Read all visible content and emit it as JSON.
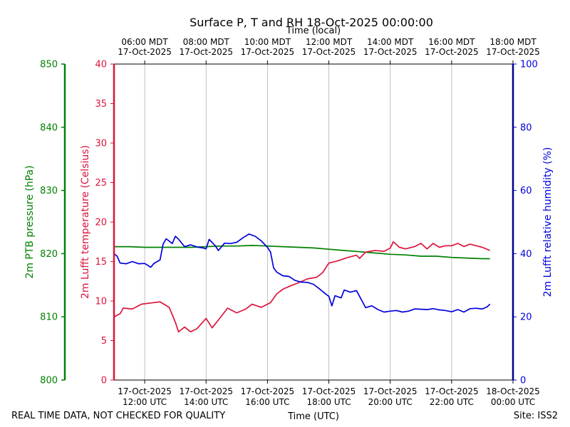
{
  "chart_data": {
    "type": "line",
    "title": "Surface P, T and RH 18-Oct-2025 00:00:00",
    "top_axis_label": "Time (local)",
    "xlabel": "Time (UTC)",
    "footer_left": "REAL TIME DATA, NOT CHECKED FOR QUALITY",
    "footer_right": "Site: ISS2",
    "x_range_hours_utc": [
      11,
      24
    ],
    "x_ticks": [
      {
        "hour": 12,
        "utc_date": "17-Oct-2025",
        "utc_time": "12:00 UTC",
        "local_time": "06:00 MDT",
        "local_date": "17-Oct-2025"
      },
      {
        "hour": 14,
        "utc_date": "17-Oct-2025",
        "utc_time": "14:00 UTC",
        "local_time": "08:00 MDT",
        "local_date": "17-Oct-2025"
      },
      {
        "hour": 16,
        "utc_date": "17-Oct-2025",
        "utc_time": "16:00 UTC",
        "local_time": "10:00 MDT",
        "local_date": "17-Oct-2025"
      },
      {
        "hour": 18,
        "utc_date": "17-Oct-2025",
        "utc_time": "18:00 UTC",
        "local_time": "12:00 MDT",
        "local_date": "17-Oct-2025"
      },
      {
        "hour": 20,
        "utc_date": "17-Oct-2025",
        "utc_time": "20:00 UTC",
        "local_time": "14:00 MDT",
        "local_date": "17-Oct-2025"
      },
      {
        "hour": 22,
        "utc_date": "17-Oct-2025",
        "utc_time": "22:00 UTC",
        "local_time": "16:00 MDT",
        "local_date": "17-Oct-2025"
      },
      {
        "hour": 24,
        "utc_date": "18-Oct-2025",
        "utc_time": "00:00 UTC",
        "local_time": "18:00 MDT",
        "local_date": "17-Oct-2025"
      }
    ],
    "grid_vertical": true,
    "axes": {
      "pressure": {
        "label": "2m PTB pressure (hPa)",
        "range": [
          800,
          850
        ],
        "ticks": [
          800,
          810,
          820,
          830,
          840,
          850
        ],
        "color": "#008000"
      },
      "temperature": {
        "label": "2m Lufft temperature (Celsius)",
        "range": [
          0,
          40
        ],
        "ticks": [
          0,
          5,
          10,
          15,
          20,
          25,
          30,
          35,
          40
        ],
        "color": "#dc143c"
      },
      "humidity": {
        "label": "2m Lufft relative humidity (%)",
        "range": [
          0,
          100
        ],
        "ticks": [
          0,
          20,
          40,
          60,
          80,
          100
        ],
        "color": "#0000dd"
      }
    },
    "series": [
      {
        "name": "2m PTB pressure (hPa)",
        "axis": "pressure",
        "color": "#008000",
        "points": [
          [
            11.0,
            821.1
          ],
          [
            11.5,
            821.1
          ],
          [
            12.0,
            821.0
          ],
          [
            12.5,
            821.0
          ],
          [
            13.0,
            821.0
          ],
          [
            13.5,
            821.0
          ],
          [
            14.0,
            821.1
          ],
          [
            14.5,
            821.2
          ],
          [
            15.0,
            821.2
          ],
          [
            15.5,
            821.3
          ],
          [
            16.0,
            821.2
          ],
          [
            16.5,
            821.1
          ],
          [
            17.0,
            821.0
          ],
          [
            17.5,
            820.9
          ],
          [
            18.0,
            820.7
          ],
          [
            18.5,
            820.5
          ],
          [
            19.0,
            820.3
          ],
          [
            19.5,
            820.1
          ],
          [
            20.0,
            819.9
          ],
          [
            20.5,
            819.8
          ],
          [
            21.0,
            819.6
          ],
          [
            21.5,
            819.6
          ],
          [
            22.0,
            819.4
          ],
          [
            22.5,
            819.3
          ],
          [
            23.0,
            819.2
          ],
          [
            23.25,
            819.2
          ]
        ]
      },
      {
        "name": "2m Lufft temperature (Celsius)",
        "axis": "temperature",
        "color": "#dc143c",
        "points": [
          [
            11.0,
            8.0
          ],
          [
            11.2,
            8.4
          ],
          [
            11.3,
            9.1
          ],
          [
            11.6,
            9.0
          ],
          [
            11.9,
            9.6
          ],
          [
            12.3,
            9.8
          ],
          [
            12.5,
            9.9
          ],
          [
            12.8,
            9.2
          ],
          [
            13.0,
            7.3
          ],
          [
            13.1,
            6.1
          ],
          [
            13.3,
            6.7
          ],
          [
            13.5,
            6.1
          ],
          [
            13.7,
            6.5
          ],
          [
            14.0,
            7.8
          ],
          [
            14.2,
            6.6
          ],
          [
            14.5,
            8.1
          ],
          [
            14.7,
            9.1
          ],
          [
            15.0,
            8.5
          ],
          [
            15.3,
            9.0
          ],
          [
            15.5,
            9.6
          ],
          [
            15.8,
            9.2
          ],
          [
            16.1,
            9.8
          ],
          [
            16.3,
            10.9
          ],
          [
            16.5,
            11.5
          ],
          [
            16.8,
            12.0
          ],
          [
            17.0,
            12.3
          ],
          [
            17.3,
            12.8
          ],
          [
            17.6,
            13.0
          ],
          [
            17.8,
            13.6
          ],
          [
            18.0,
            14.8
          ],
          [
            18.3,
            15.1
          ],
          [
            18.6,
            15.5
          ],
          [
            18.9,
            15.8
          ],
          [
            19.0,
            15.4
          ],
          [
            19.2,
            16.2
          ],
          [
            19.5,
            16.4
          ],
          [
            19.8,
            16.3
          ],
          [
            20.0,
            16.7
          ],
          [
            20.1,
            17.5
          ],
          [
            20.3,
            16.8
          ],
          [
            20.5,
            16.6
          ],
          [
            20.8,
            16.9
          ],
          [
            21.0,
            17.3
          ],
          [
            21.2,
            16.6
          ],
          [
            21.4,
            17.3
          ],
          [
            21.6,
            16.8
          ],
          [
            21.8,
            17.0
          ],
          [
            22.0,
            17.0
          ],
          [
            22.2,
            17.3
          ],
          [
            22.4,
            16.9
          ],
          [
            22.6,
            17.2
          ],
          [
            22.8,
            17.0
          ],
          [
            23.0,
            16.8
          ],
          [
            23.25,
            16.4
          ]
        ]
      },
      {
        "name": "2m Lufft relative humidity (%)",
        "axis": "humidity",
        "color": "#0000dd",
        "points": [
          [
            11.0,
            40.0
          ],
          [
            11.1,
            39.2
          ],
          [
            11.2,
            37.0
          ],
          [
            11.4,
            36.8
          ],
          [
            11.6,
            37.5
          ],
          [
            11.8,
            36.8
          ],
          [
            12.0,
            36.9
          ],
          [
            12.2,
            35.7
          ],
          [
            12.3,
            36.9
          ],
          [
            12.5,
            38.0
          ],
          [
            12.6,
            43.0
          ],
          [
            12.7,
            44.7
          ],
          [
            12.9,
            43.2
          ],
          [
            13.0,
            45.5
          ],
          [
            13.1,
            44.6
          ],
          [
            13.3,
            42.2
          ],
          [
            13.5,
            42.8
          ],
          [
            13.7,
            42.1
          ],
          [
            13.9,
            41.8
          ],
          [
            14.0,
            41.5
          ],
          [
            14.1,
            44.5
          ],
          [
            14.3,
            42.5
          ],
          [
            14.4,
            41.0
          ],
          [
            14.6,
            43.3
          ],
          [
            14.8,
            43.2
          ],
          [
            15.0,
            43.6
          ],
          [
            15.2,
            45.0
          ],
          [
            15.4,
            46.2
          ],
          [
            15.6,
            45.5
          ],
          [
            15.8,
            44.0
          ],
          [
            16.0,
            42.0
          ],
          [
            16.1,
            40.5
          ],
          [
            16.2,
            35.5
          ],
          [
            16.3,
            34.2
          ],
          [
            16.5,
            33.0
          ],
          [
            16.7,
            32.8
          ],
          [
            16.9,
            31.5
          ],
          [
            17.1,
            31.0
          ],
          [
            17.3,
            30.9
          ],
          [
            17.5,
            30.3
          ],
          [
            17.7,
            28.8
          ],
          [
            17.9,
            27.2
          ],
          [
            18.0,
            26.5
          ],
          [
            18.1,
            23.5
          ],
          [
            18.2,
            26.7
          ],
          [
            18.4,
            26.0
          ],
          [
            18.5,
            28.5
          ],
          [
            18.7,
            27.8
          ],
          [
            18.9,
            28.3
          ],
          [
            19.0,
            26.5
          ],
          [
            19.2,
            22.9
          ],
          [
            19.4,
            23.5
          ],
          [
            19.6,
            22.3
          ],
          [
            19.8,
            21.5
          ],
          [
            20.0,
            21.8
          ],
          [
            20.2,
            22.0
          ],
          [
            20.4,
            21.5
          ],
          [
            20.6,
            21.8
          ],
          [
            20.8,
            22.5
          ],
          [
            21.0,
            22.4
          ],
          [
            21.2,
            22.3
          ],
          [
            21.4,
            22.6
          ],
          [
            21.6,
            22.2
          ],
          [
            21.8,
            22.0
          ],
          [
            22.0,
            21.6
          ],
          [
            22.2,
            22.3
          ],
          [
            22.4,
            21.5
          ],
          [
            22.6,
            22.6
          ],
          [
            22.8,
            22.7
          ],
          [
            23.0,
            22.5
          ],
          [
            23.15,
            23.1
          ],
          [
            23.25,
            24.0
          ]
        ]
      }
    ]
  }
}
